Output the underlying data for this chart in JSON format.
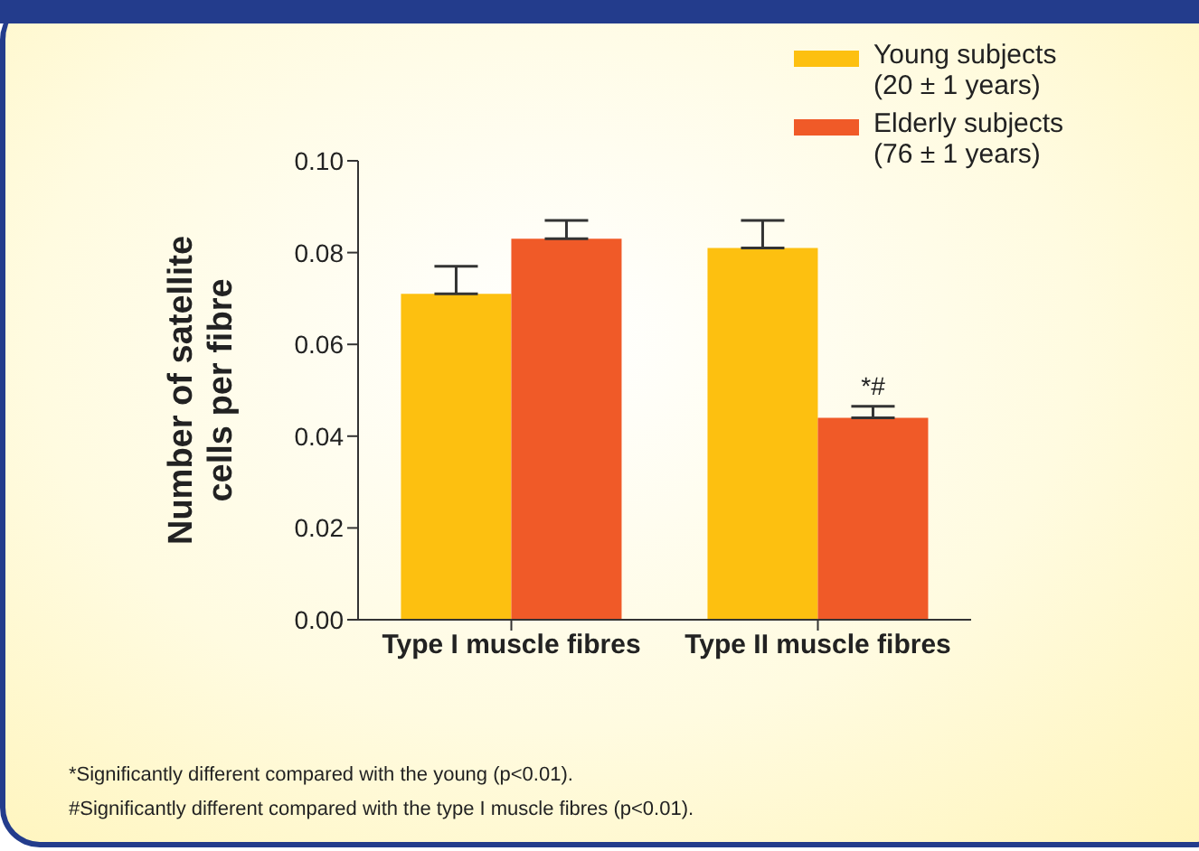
{
  "chart_data": {
    "type": "bar",
    "ylabel": "Number of satellite cells per fibre",
    "categories": [
      "Type I muscle fibres",
      "Type II muscle fibres"
    ],
    "series": [
      {
        "name": "Young subjects (20 ± 1 years)",
        "color": "#fdc010",
        "values": [
          0.071,
          0.081
        ],
        "errors": [
          [
            0.071,
            0.077
          ],
          [
            0.081,
            0.087
          ]
        ]
      },
      {
        "name": "Elderly subjects (76 ± 1 years)",
        "color": "#f05a28",
        "values": [
          0.083,
          0.044
        ],
        "errors": [
          [
            0.083,
            0.087
          ],
          [
            0.044,
            0.0465
          ]
        ]
      }
    ],
    "ylim": [
      0,
      0.1
    ],
    "yticks": [
      {
        "value": 0,
        "label": "0.00"
      },
      {
        "value": 0.02,
        "label": "0.02"
      },
      {
        "value": 0.04,
        "label": "0.04"
      },
      {
        "value": 0.06,
        "label": "0.06"
      },
      {
        "value": 0.08,
        "label": "0.08"
      },
      {
        "value": 0.1,
        "label": "0.10"
      }
    ],
    "grid": false,
    "legend": "top right",
    "annotations": [
      {
        "text": "*#",
        "x": "Type II muscle fibres",
        "y": 0.049
      },
      "*Significantly different compared with the young (p<0.01).",
      "#Significantly different compared with the type I muscle fibres (p<0.01)."
    ]
  }
}
